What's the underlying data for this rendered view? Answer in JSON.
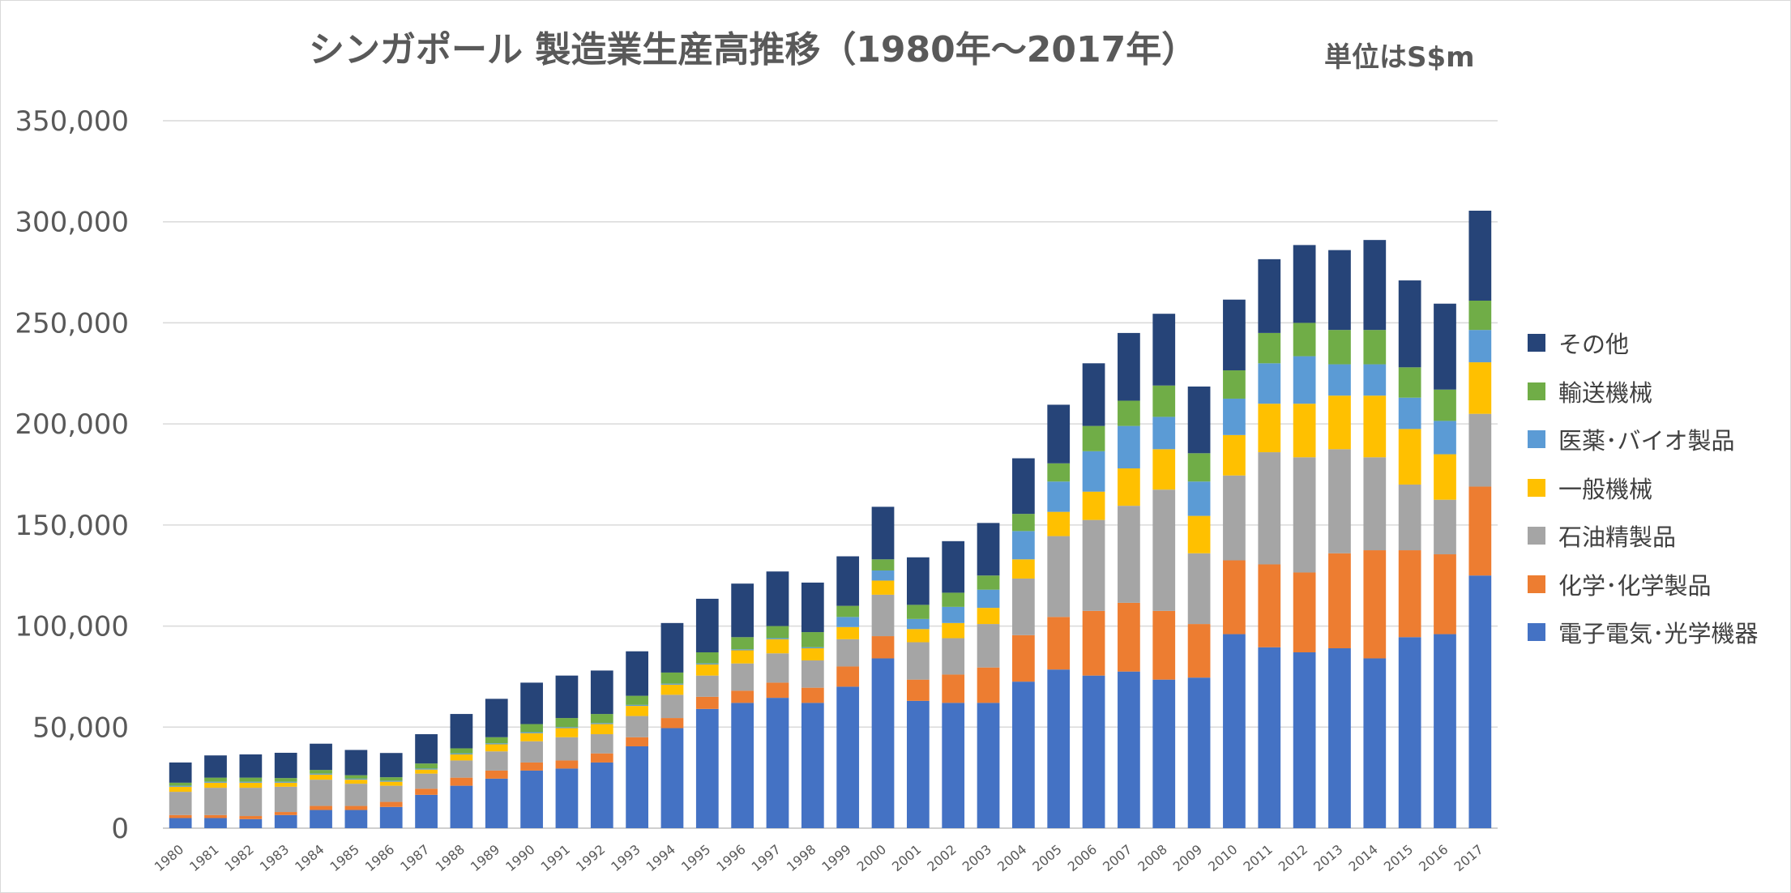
{
  "chart_data": {
    "type": "bar",
    "stacked": true,
    "title": "シンガポール 製造業生産高推移（1980年～2017年）",
    "unit_label": "単位はS$m",
    "xlabel": "",
    "ylabel": "",
    "ylim": [
      0,
      350000
    ],
    "y_ticks": [
      "0",
      "50,000",
      "100,000",
      "150,000",
      "200,000",
      "250,000",
      "300,000",
      "350,000"
    ],
    "y_tick_values": [
      0,
      50000,
      100000,
      150000,
      200000,
      250000,
      300000,
      350000
    ],
    "grid": true,
    "legend_position": "right",
    "categories": [
      "1980",
      "1981",
      "1982",
      "1983",
      "1984",
      "1985",
      "1986",
      "1987",
      "1988",
      "1989",
      "1990",
      "1991",
      "1992",
      "1993",
      "1994",
      "1995",
      "1996",
      "1997",
      "1998",
      "1999",
      "2000",
      "2001",
      "2002",
      "2003",
      "2004",
      "2005",
      "2006",
      "2007",
      "2008",
      "2009",
      "2010",
      "2011",
      "2012",
      "2013",
      "2014",
      "2015",
      "2016",
      "2017"
    ],
    "series": [
      {
        "name": "電子電気･光学機器",
        "color": "#4472C4",
        "values": [
          5000,
          5000,
          4500,
          6500,
          9000,
          9000,
          10500,
          16500,
          21000,
          24500,
          28500,
          29500,
          32500,
          40500,
          49500,
          59000,
          62000,
          64500,
          62000,
          70000,
          84000,
          63000,
          62000,
          62000,
          72500,
          78500,
          75500,
          77500,
          73500,
          74500,
          96000,
          89500,
          87000,
          89000,
          84000,
          94500,
          96000,
          125000
        ]
      },
      {
        "name": "化学･化学製品",
        "color": "#ED7D31",
        "values": [
          1500,
          1500,
          1500,
          1500,
          2000,
          2000,
          2500,
          3000,
          4000,
          4000,
          4000,
          4000,
          4500,
          4500,
          5000,
          6000,
          6000,
          7500,
          7500,
          10000,
          11000,
          10500,
          14000,
          17500,
          23000,
          26000,
          32000,
          34000,
          34000,
          26500,
          36500,
          41000,
          39500,
          47000,
          53500,
          43000,
          39500,
          44000
        ]
      },
      {
        "name": "石油精製品",
        "color": "#A5A5A5",
        "values": [
          11500,
          13500,
          14000,
          12500,
          13000,
          11000,
          8000,
          7500,
          8500,
          9500,
          10500,
          11500,
          9500,
          10500,
          11500,
          10500,
          13500,
          14500,
          13500,
          13500,
          20500,
          18500,
          18000,
          21500,
          28000,
          40000,
          45000,
          48000,
          60000,
          35000,
          42000,
          55500,
          57000,
          51500,
          46000,
          32500,
          27000,
          36000
        ]
      },
      {
        "name": "一般機械",
        "color": "#FFC000",
        "values": [
          2500,
          2500,
          2500,
          2000,
          2500,
          2000,
          2000,
          2000,
          3000,
          3500,
          4000,
          4500,
          5000,
          5000,
          5000,
          5500,
          6500,
          7000,
          6000,
          6000,
          7000,
          6500,
          7500,
          8000,
          9500,
          12000,
          14000,
          18500,
          20000,
          18500,
          20000,
          24000,
          26500,
          26500,
          30500,
          27500,
          22500,
          25500
        ]
      },
      {
        "name": "医薬･バイオ製品",
        "color": "#5B9BD5",
        "values": [
          500,
          500,
          500,
          500,
          500,
          500,
          500,
          500,
          500,
          500,
          500,
          500,
          500,
          500,
          500,
          500,
          500,
          500,
          500,
          5000,
          5000,
          5000,
          8000,
          9000,
          14000,
          15000,
          20000,
          21000,
          16000,
          17000,
          18000,
          20000,
          23500,
          15500,
          15500,
          15500,
          16500,
          16000
        ]
      },
      {
        "name": "輸送機械",
        "color": "#70AD47",
        "values": [
          1500,
          2000,
          2000,
          1800,
          1800,
          1700,
          1700,
          2500,
          2500,
          3000,
          4000,
          4500,
          4500,
          4500,
          5500,
          5500,
          6000,
          6000,
          7500,
          5500,
          5500,
          7000,
          7000,
          7000,
          8500,
          9000,
          12500,
          12500,
          15500,
          14000,
          14000,
          15000,
          16500,
          17000,
          17000,
          15000,
          15500,
          14500
        ]
      },
      {
        "name": "その他",
        "color": "#264478",
        "values": [
          10000,
          11000,
          11500,
          12500,
          13000,
          12500,
          12000,
          14500,
          17000,
          19000,
          20500,
          21000,
          21500,
          22000,
          24500,
          26500,
          26500,
          27000,
          24500,
          24500,
          26000,
          23500,
          25500,
          26000,
          27500,
          29000,
          31000,
          33500,
          35500,
          33000,
          35000,
          36500,
          38500,
          39500,
          44500,
          43000,
          42500,
          44500
        ]
      }
    ]
  }
}
